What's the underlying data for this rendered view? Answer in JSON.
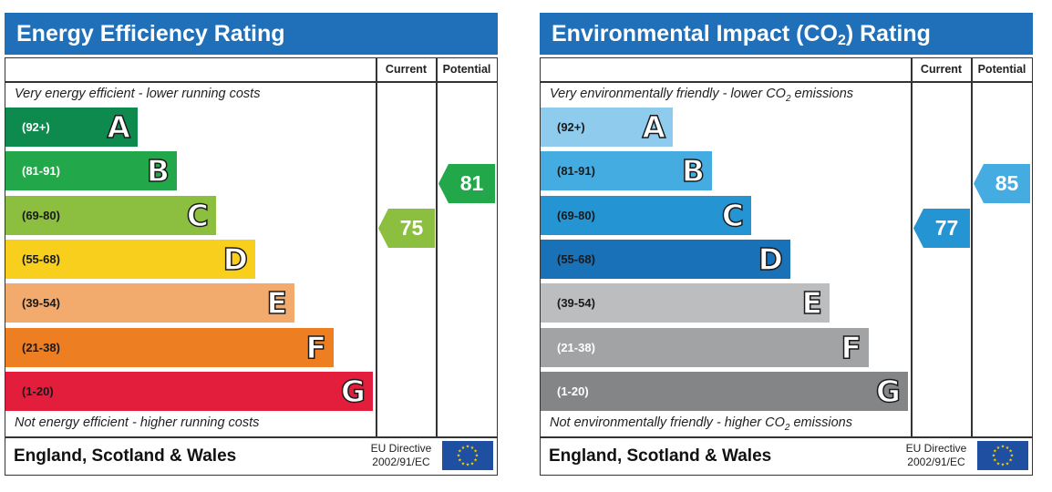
{
  "charts": [
    {
      "id": "energy",
      "title_html": "Energy Efficiency Rating",
      "columns": {
        "current": "Current",
        "potential": "Potential"
      },
      "top_caption_html": "Very energy efficient - lower running costs",
      "bottom_caption_html": "Not energy efficient - higher running costs",
      "footer_name": "England, Scotland & Wales",
      "eu_directive_line1": "EU Directive",
      "eu_directive_line2": "2002/91/EC",
      "bands": [
        {
          "range": "(92+)",
          "letter": "A",
          "color": "#0e8a4e",
          "text_color": "#ffffff"
        },
        {
          "range": "(81-91)",
          "letter": "B",
          "color": "#22a84a",
          "text_color": "#ffffff"
        },
        {
          "range": "(69-80)",
          "letter": "C",
          "color": "#8cbf3f",
          "text_color": "#1a1a1a"
        },
        {
          "range": "(55-68)",
          "letter": "D",
          "color": "#f7cf1c",
          "text_color": "#1a1a1a"
        },
        {
          "range": "(39-54)",
          "letter": "E",
          "color": "#f2aa6d",
          "text_color": "#1a1a1a"
        },
        {
          "range": "(21-38)",
          "letter": "F",
          "color": "#ed7e22",
          "text_color": "#1a1a1a"
        },
        {
          "range": "(1-20)",
          "letter": "G",
          "color": "#e21e3c",
          "text_color": "#1a1a1a"
        }
      ],
      "current": {
        "value": "75",
        "band": "C",
        "color": "#8cbf3f"
      },
      "potential": {
        "value": "81",
        "band": "B",
        "color": "#22a84a"
      }
    },
    {
      "id": "environmental",
      "title_html": "Environmental Impact (CO<sub>2</sub>) Rating",
      "columns": {
        "current": "Current",
        "potential": "Potential"
      },
      "top_caption_html": "Very environmentally friendly - lower CO<sub>2</sub> emissions",
      "bottom_caption_html": "Not environmentally friendly - higher CO<sub>2</sub> emissions",
      "footer_name": "England, Scotland & Wales",
      "eu_directive_line1": "EU Directive",
      "eu_directive_line2": "2002/91/EC",
      "bands": [
        {
          "range": "(92+)",
          "letter": "A",
          "color": "#8fcbec",
          "text_color": "#1a1a1a"
        },
        {
          "range": "(81-91)",
          "letter": "B",
          "color": "#45ace1",
          "text_color": "#1a1a1a"
        },
        {
          "range": "(69-80)",
          "letter": "C",
          "color": "#2494d2",
          "text_color": "#1a1a1a"
        },
        {
          "range": "(55-68)",
          "letter": "D",
          "color": "#1971b8",
          "text_color": "#1a1a1a"
        },
        {
          "range": "(39-54)",
          "letter": "E",
          "color": "#bcbdbf",
          "text_color": "#1a1a1a"
        },
        {
          "range": "(21-38)",
          "letter": "F",
          "color": "#a2a3a5",
          "text_color": "#ffffff"
        },
        {
          "range": "(1-20)",
          "letter": "G",
          "color": "#848586",
          "text_color": "#ffffff"
        }
      ],
      "current": {
        "value": "77",
        "band": "C",
        "color": "#2494d2"
      },
      "potential": {
        "value": "85",
        "band": "B",
        "color": "#45ace1"
      }
    }
  ]
}
